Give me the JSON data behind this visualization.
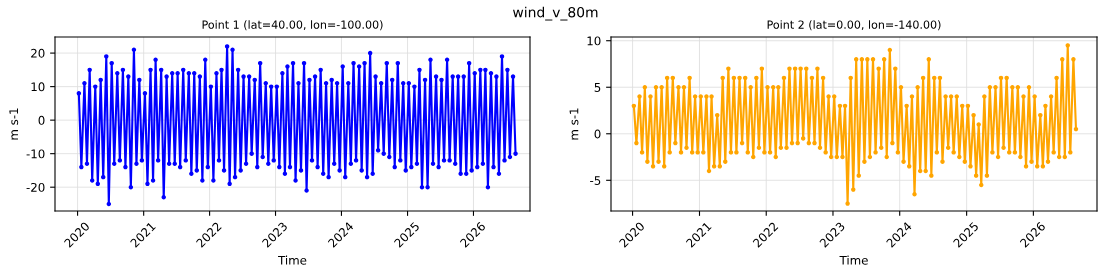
{
  "chart_data": [
    {
      "type": "line",
      "title": "wind_v_80m",
      "subtitle": "Point 1 (lat=40.00, lon=-100.00)",
      "xlabel": "Time",
      "ylabel": "m s-1",
      "grid": true,
      "marker": "circle",
      "line_style": "solid",
      "x": [
        "2020-01-08",
        "2020-01-22",
        "2020-02-08",
        "2020-02-22",
        "2020-03-08",
        "2020-03-22",
        "2020-04-08",
        "2020-04-22",
        "2020-05-08",
        "2020-05-22",
        "2020-06-08",
        "2020-06-22",
        "2020-07-08",
        "2020-07-22",
        "2020-08-08",
        "2020-08-22",
        "2020-09-08",
        "2020-09-22",
        "2020-10-08",
        "2020-10-22",
        "2020-11-08",
        "2020-11-22",
        "2020-12-08",
        "2020-12-22",
        "2021-01-08",
        "2021-01-22",
        "2021-02-08",
        "2021-02-22",
        "2021-03-08",
        "2021-03-22",
        "2021-04-08",
        "2021-04-22",
        "2021-05-08",
        "2021-05-22",
        "2021-06-08",
        "2021-06-22",
        "2021-07-08",
        "2021-07-22",
        "2021-08-08",
        "2021-08-22",
        "2021-09-08",
        "2021-09-22",
        "2021-10-08",
        "2021-10-22",
        "2021-11-08",
        "2021-11-22",
        "2021-12-08",
        "2021-12-22",
        "2022-01-08",
        "2022-01-22",
        "2022-02-08",
        "2022-02-22",
        "2022-03-08",
        "2022-03-22",
        "2022-04-08",
        "2022-04-22",
        "2022-05-08",
        "2022-05-22",
        "2022-06-08",
        "2022-06-22",
        "2022-07-08",
        "2022-07-22",
        "2022-08-08",
        "2022-08-22",
        "2022-09-08",
        "2022-09-22",
        "2022-10-08",
        "2022-10-22",
        "2022-11-08",
        "2022-11-22",
        "2022-12-08",
        "2022-12-22",
        "2023-01-08",
        "2023-01-22",
        "2023-02-08",
        "2023-02-22",
        "2023-03-08",
        "2023-03-22",
        "2023-04-08",
        "2023-04-22",
        "2023-05-08",
        "2023-05-22",
        "2023-06-08",
        "2023-06-22",
        "2023-07-08",
        "2023-07-22",
        "2023-08-08",
        "2023-08-22",
        "2023-09-08",
        "2023-09-22",
        "2023-10-08",
        "2023-10-22",
        "2023-11-08",
        "2023-11-22",
        "2023-12-08",
        "2023-12-22",
        "2024-01-08",
        "2024-01-22",
        "2024-02-08",
        "2024-02-22",
        "2024-03-08",
        "2024-03-22",
        "2024-04-08",
        "2024-04-22",
        "2024-05-08",
        "2024-05-22",
        "2024-06-08",
        "2024-06-22",
        "2024-07-08",
        "2024-07-22",
        "2024-08-08",
        "2024-08-22",
        "2024-09-08",
        "2024-09-22",
        "2024-10-08",
        "2024-10-22",
        "2024-11-08",
        "2024-11-22",
        "2024-12-08",
        "2024-12-22",
        "2025-01-08",
        "2025-01-22",
        "2025-02-08",
        "2025-02-22",
        "2025-03-08",
        "2025-03-22",
        "2025-04-08",
        "2025-04-22",
        "2025-05-08",
        "2025-05-22",
        "2025-06-08",
        "2025-06-22",
        "2025-07-08",
        "2025-07-22",
        "2025-08-08",
        "2025-08-22",
        "2025-09-08",
        "2025-09-22",
        "2025-10-08",
        "2025-10-22",
        "2025-11-08",
        "2025-11-22",
        "2025-12-08",
        "2025-12-22",
        "2026-01-08",
        "2026-01-22",
        "2026-02-08",
        "2026-02-22",
        "2026-03-08",
        "2026-03-22",
        "2026-04-08",
        "2026-04-22",
        "2026-05-08",
        "2026-05-22",
        "2026-06-08",
        "2026-06-22",
        "2026-07-08",
        "2026-07-22",
        "2026-08-08",
        "2026-08-22"
      ],
      "series": [
        {
          "color": "#0000ff",
          "values": [
            8,
            -14,
            11,
            -13,
            15,
            -18,
            10,
            -19,
            12,
            -17,
            19,
            -25,
            17,
            -13,
            14,
            -12,
            15,
            -14,
            13,
            -20,
            21,
            -13,
            12,
            -12,
            8,
            -19,
            15,
            -18,
            18,
            -12,
            15,
            -23,
            13,
            -13,
            14,
            -13,
            14,
            -14,
            15,
            -12,
            14,
            -16,
            14,
            -15,
            13,
            -18,
            18,
            -14,
            10,
            -18,
            14,
            -12,
            15,
            -15,
            22,
            -19,
            21,
            -17,
            15,
            -15,
            13,
            -13,
            13,
            -10,
            12,
            -14,
            17,
            -11,
            11,
            -13,
            10,
            -12,
            10,
            -14,
            14,
            -16,
            16,
            -14,
            17,
            -18,
            11,
            -15,
            17,
            -21,
            12,
            -12,
            13,
            -14,
            15,
            -16,
            11,
            -17,
            12,
            -13,
            11,
            -15,
            16,
            -17,
            11,
            -13,
            17,
            -12,
            16,
            -15,
            17,
            -17,
            20,
            -16,
            13,
            -9,
            11,
            -10,
            17,
            -11,
            12,
            -14,
            17,
            -12,
            11,
            -15,
            11,
            -14,
            10,
            -13,
            15,
            -20,
            12,
            -20,
            18,
            -13,
            13,
            -14,
            12,
            -12,
            18,
            -12,
            13,
            -13,
            13,
            -16,
            13,
            -16,
            17,
            -15,
            14,
            -14,
            15,
            -13,
            15,
            -20,
            14,
            -14,
            13,
            -16,
            19,
            -12,
            15,
            -11,
            13,
            -10
          ]
        }
      ],
      "xlim": [
        "2019-08-29",
        "2026-11-10"
      ],
      "ylim": [
        -27.1,
        24.8
      ],
      "xticks": [
        {
          "value": "2020-01-01",
          "label": "2020"
        },
        {
          "value": "2021-01-01",
          "label": "2021"
        },
        {
          "value": "2022-01-01",
          "label": "2022"
        },
        {
          "value": "2023-01-01",
          "label": "2023"
        },
        {
          "value": "2024-01-01",
          "label": "2024"
        },
        {
          "value": "2025-01-01",
          "label": "2025"
        },
        {
          "value": "2026-01-01",
          "label": "2026"
        }
      ],
      "yticks": [
        -20,
        -10,
        0,
        10,
        20
      ]
    },
    {
      "type": "line",
      "subtitle": "Point 2 (lat=0.00, lon=-140.00)",
      "xlabel": "Time",
      "ylabel": "m s-1",
      "grid": true,
      "marker": "circle",
      "line_style": "solid",
      "x": [
        "2020-01-08",
        "2020-01-22",
        "2020-02-08",
        "2020-02-22",
        "2020-03-08",
        "2020-03-22",
        "2020-04-08",
        "2020-04-22",
        "2020-05-08",
        "2020-05-22",
        "2020-06-08",
        "2020-06-22",
        "2020-07-08",
        "2020-07-22",
        "2020-08-08",
        "2020-08-22",
        "2020-09-08",
        "2020-09-22",
        "2020-10-08",
        "2020-10-22",
        "2020-11-08",
        "2020-11-22",
        "2020-12-08",
        "2020-12-22",
        "2021-01-08",
        "2021-01-22",
        "2021-02-08",
        "2021-02-22",
        "2021-03-08",
        "2021-03-22",
        "2021-04-08",
        "2021-04-22",
        "2021-05-08",
        "2021-05-22",
        "2021-06-08",
        "2021-06-22",
        "2021-07-08",
        "2021-07-22",
        "2021-08-08",
        "2021-08-22",
        "2021-09-08",
        "2021-09-22",
        "2021-10-08",
        "2021-10-22",
        "2021-11-08",
        "2021-11-22",
        "2021-12-08",
        "2021-12-22",
        "2022-01-08",
        "2022-01-22",
        "2022-02-08",
        "2022-02-22",
        "2022-03-08",
        "2022-03-22",
        "2022-04-08",
        "2022-04-22",
        "2022-05-08",
        "2022-05-22",
        "2022-06-08",
        "2022-06-22",
        "2022-07-08",
        "2022-07-22",
        "2022-08-08",
        "2022-08-22",
        "2022-09-08",
        "2022-09-22",
        "2022-10-08",
        "2022-10-22",
        "2022-11-08",
        "2022-11-22",
        "2022-12-08",
        "2022-12-22",
        "2023-01-08",
        "2023-01-22",
        "2023-02-08",
        "2023-02-22",
        "2023-03-08",
        "2023-03-22",
        "2023-04-08",
        "2023-04-22",
        "2023-05-08",
        "2023-05-22",
        "2023-06-08",
        "2023-06-22",
        "2023-07-08",
        "2023-07-22",
        "2023-08-08",
        "2023-08-22",
        "2023-09-08",
        "2023-09-22",
        "2023-10-08",
        "2023-10-22",
        "2023-11-08",
        "2023-11-22",
        "2023-12-08",
        "2023-12-22",
        "2024-01-08",
        "2024-01-22",
        "2024-02-08",
        "2024-02-22",
        "2024-03-08",
        "2024-03-22",
        "2024-04-08",
        "2024-04-22",
        "2024-05-08",
        "2024-05-22",
        "2024-06-08",
        "2024-06-22",
        "2024-07-08",
        "2024-07-22",
        "2024-08-08",
        "2024-08-22",
        "2024-09-08",
        "2024-09-22",
        "2024-10-08",
        "2024-10-22",
        "2024-11-08",
        "2024-11-22",
        "2024-12-08",
        "2024-12-22",
        "2025-01-08",
        "2025-01-22",
        "2025-02-08",
        "2025-02-22",
        "2025-03-08",
        "2025-03-22",
        "2025-04-08",
        "2025-04-22",
        "2025-05-08",
        "2025-05-22",
        "2025-06-08",
        "2025-06-22",
        "2025-07-08",
        "2025-07-22",
        "2025-08-08",
        "2025-08-22",
        "2025-09-08",
        "2025-09-22",
        "2025-10-08",
        "2025-10-22",
        "2025-11-08",
        "2025-11-22",
        "2025-12-08",
        "2025-12-22",
        "2026-01-08",
        "2026-01-22",
        "2026-02-08",
        "2026-02-22",
        "2026-03-08",
        "2026-03-22",
        "2026-04-08",
        "2026-04-22",
        "2026-05-08",
        "2026-05-22",
        "2026-06-08",
        "2026-06-22",
        "2026-07-08",
        "2026-07-22",
        "2026-08-08",
        "2026-08-22"
      ],
      "series": [
        {
          "color": "#ffa500",
          "values": [
            3,
            -1,
            4,
            -2,
            5,
            -3,
            4,
            -3.5,
            5,
            -3,
            5,
            -3.5,
            6,
            -2,
            6,
            -1,
            5,
            -2,
            5,
            -1.5,
            6,
            -2,
            4,
            -2,
            4,
            -2,
            4,
            -4,
            4,
            -3.5,
            2,
            -3.5,
            6,
            -3,
            7,
            -2,
            6,
            -2,
            6,
            -1,
            6,
            -2,
            5,
            -2.5,
            6,
            -1.5,
            7,
            -2,
            5,
            -2,
            5,
            -2.5,
            5,
            -1.5,
            6,
            -1.5,
            7,
            -1,
            7,
            -1,
            7,
            -0.5,
            7,
            -1,
            6,
            -1,
            7,
            -1.5,
            6,
            -2,
            4,
            -2.5,
            4,
            -2.5,
            3,
            -2.5,
            3,
            -7.5,
            6,
            -6,
            8,
            -4.5,
            8,
            -3,
            8,
            -2.5,
            8,
            -2,
            7,
            -1.5,
            8,
            -2.5,
            9,
            -1,
            7,
            -2,
            5,
            -3,
            3,
            -3.5,
            4,
            -6.5,
            5,
            -4,
            6,
            -4,
            8,
            -4.5,
            6,
            -2,
            6,
            -3,
            4,
            -1.5,
            4,
            -2,
            4,
            -2.5,
            3,
            -3,
            3,
            -3.5,
            2,
            -4.5,
            1,
            -5.5,
            4,
            -4.5,
            5,
            -2,
            5,
            -2.5,
            6,
            -1.5,
            6,
            -2,
            5,
            -2,
            5,
            -2.5,
            4,
            -3.5,
            5,
            -3,
            4,
            -3.5,
            2,
            -3.5,
            3,
            -3,
            4,
            -2,
            6,
            -2.5,
            8,
            -2.5,
            9.5,
            -2,
            8,
            0.5
          ]
        }
      ],
      "xlim": [
        "2019-09-05",
        "2026-12-15"
      ],
      "ylim": [
        -8.3,
        10.4
      ],
      "xticks": [
        {
          "value": "2020-01-01",
          "label": "2020"
        },
        {
          "value": "2021-01-01",
          "label": "2021"
        },
        {
          "value": "2022-01-01",
          "label": "2022"
        },
        {
          "value": "2023-01-01",
          "label": "2023"
        },
        {
          "value": "2024-01-01",
          "label": "2024"
        },
        {
          "value": "2025-01-01",
          "label": "2025"
        },
        {
          "value": "2026-01-01",
          "label": "2026"
        }
      ],
      "yticks": [
        -5,
        0,
        5,
        10
      ]
    }
  ]
}
